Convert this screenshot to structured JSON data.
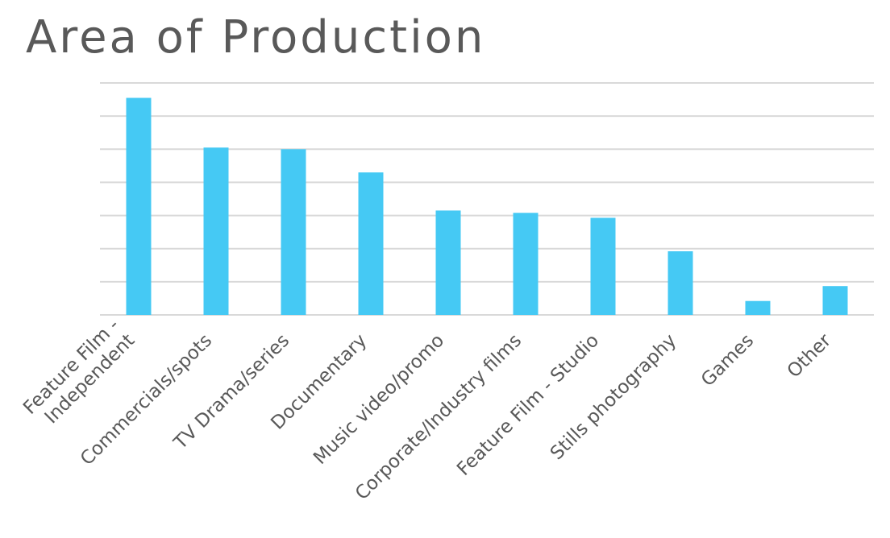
{
  "chart_data": {
    "type": "bar",
    "title": "Area of Production",
    "xlabel": "",
    "ylabel": "",
    "ylim": [
      0,
      7
    ],
    "y_gridlines": 7,
    "grid": true,
    "y_tick_labels_visible": false,
    "bar_color": "#45c9f4",
    "categories": [
      [
        "Feature Film -",
        "Independent"
      ],
      [
        "Commercials/spots"
      ],
      [
        "TV Drama/series"
      ],
      [
        "Documentary"
      ],
      [
        "Music video/promo"
      ],
      [
        "Corporate/Industry films"
      ],
      [
        "Feature Film - Studio"
      ],
      [
        "Stills photography"
      ],
      [
        "Games"
      ],
      [
        "Other"
      ]
    ],
    "values": [
      6.55,
      5.05,
      5.0,
      4.3,
      3.15,
      3.08,
      2.93,
      1.92,
      0.42,
      0.87
    ]
  }
}
